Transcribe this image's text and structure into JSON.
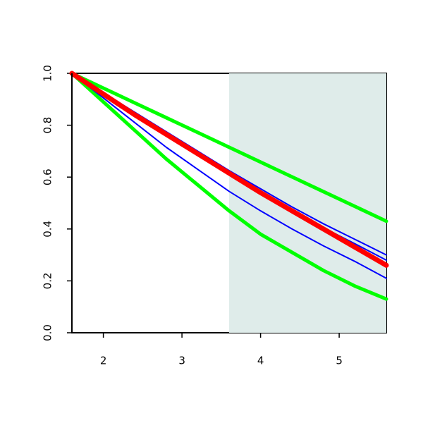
{
  "chart_data": {
    "type": "line",
    "x": [
      1.6,
      2.0,
      2.4,
      2.8,
      3.2,
      3.6,
      4.0,
      4.4,
      4.8,
      5.2,
      5.6
    ],
    "series": [
      {
        "color": "#00ff00",
        "values": [
          1,
          0.943,
          0.886,
          0.829,
          0.772,
          0.715,
          0.658,
          0.601,
          0.544,
          0.487,
          0.43
        ]
      },
      {
        "color": "#00ff00",
        "values": [
          1,
          0.89,
          0.78,
          0.67,
          0.57,
          0.47,
          0.38,
          0.31,
          0.24,
          0.18,
          0.13
        ]
      },
      {
        "color": "#0000ff",
        "values": [
          1,
          0.925,
          0.85,
          0.775,
          0.7,
          0.625,
          0.555,
          0.485,
          0.42,
          0.36,
          0.3
        ]
      },
      {
        "color": "#0000ff",
        "values": [
          1,
          0.922,
          0.845,
          0.768,
          0.69,
          0.615,
          0.543,
          0.472,
          0.405,
          0.343,
          0.28
        ]
      },
      {
        "color": "#0000ff",
        "values": [
          1,
          0.905,
          0.81,
          0.715,
          0.63,
          0.545,
          0.47,
          0.4,
          0.335,
          0.275,
          0.21
        ]
      },
      {
        "color": "#ff0000",
        "values": [
          1,
          0.92,
          0.84,
          0.765,
          0.69,
          0.615,
          0.54,
          0.47,
          0.4,
          0.33,
          0.26
        ]
      }
    ],
    "shaded_region": {
      "x": [
        3.6,
        5.6
      ],
      "color": "#dfecea"
    },
    "xlim": [
      1.6,
      5.6
    ],
    "xticks": [
      2,
      3,
      4,
      5
    ],
    "ylim": [
      0,
      1
    ],
    "yticks": [
      {
        "value": 0,
        "label": "0.0"
      },
      0.2,
      0.4,
      0.6,
      0.8,
      {
        "value": 1,
        "label": "1.0"
      }
    ]
  }
}
